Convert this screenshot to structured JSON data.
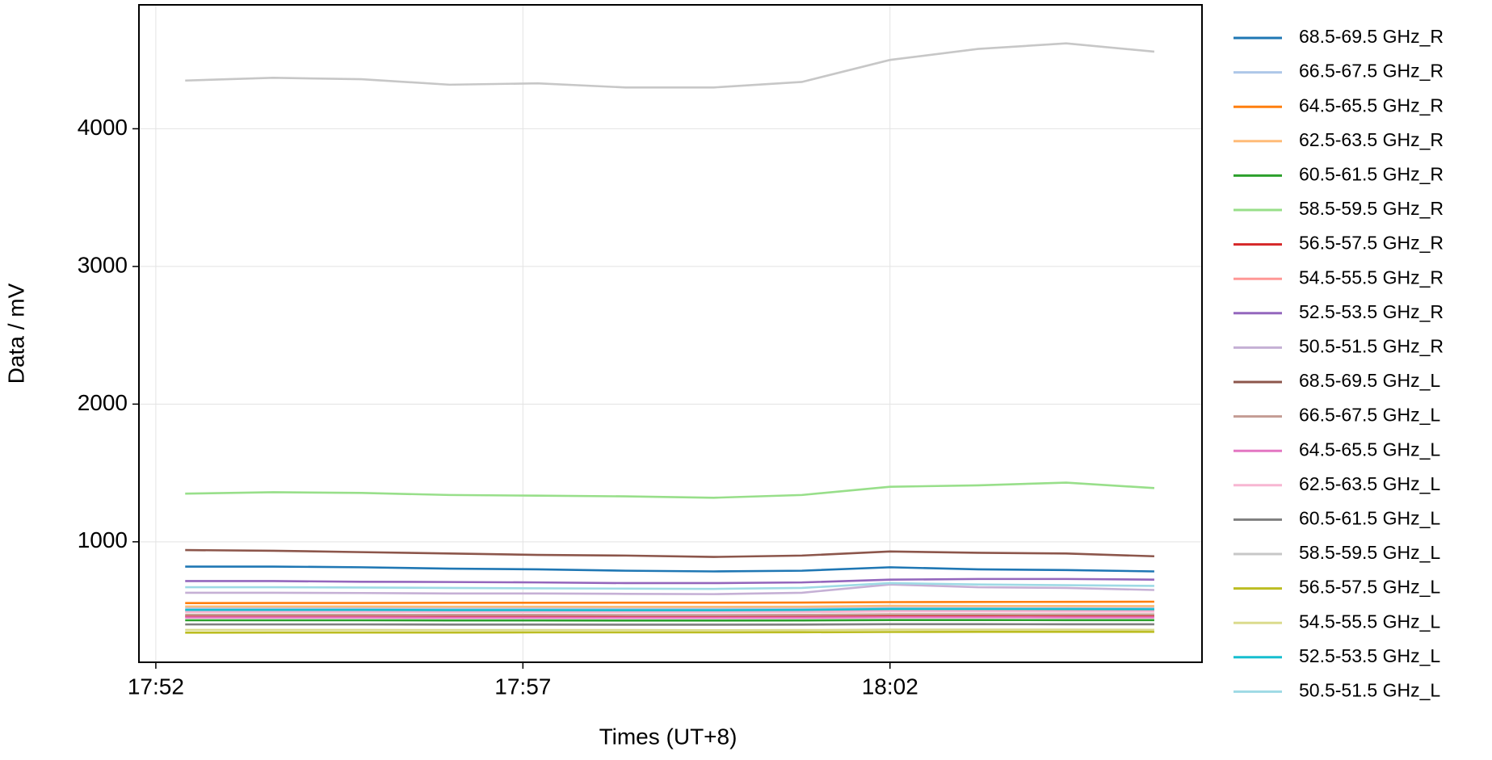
{
  "chart_data": {
    "type": "line",
    "x_label": "Times (UT+8)",
    "y_label": "Data / mV",
    "x": [
      1072.4,
      1073.6,
      1074.8,
      1076.0,
      1077.2,
      1078.4,
      1079.6,
      1080.8,
      1082.0,
      1083.2,
      1084.4,
      1085.6
    ],
    "xlim": [
      1071.77,
      1086.25
    ],
    "xticks": [
      {
        "value": 1072,
        "label": "17:52"
      },
      {
        "value": 1077,
        "label": "17:57"
      },
      {
        "value": 1082,
        "label": "18:02"
      }
    ],
    "ylim": [
      125,
      4900
    ],
    "yticks": [
      1000,
      2000,
      3000,
      4000
    ],
    "grid": true,
    "legend": "outside right",
    "series": [
      {
        "name": "68.5-69.5 GHz_R",
        "color": "#1f77b4",
        "values": [
          820,
          820,
          815,
          805,
          800,
          790,
          785,
          790,
          815,
          800,
          795,
          785
        ]
      },
      {
        "name": "66.5-67.5 GHz_R",
        "color": "#aec7e8",
        "values": [
          520,
          520,
          519,
          518,
          518,
          517,
          516,
          518,
          525,
          524,
          523,
          522
        ]
      },
      {
        "name": "64.5-65.5 GHz_R",
        "color": "#ff7f0e",
        "values": [
          555,
          556,
          556,
          557,
          557,
          558,
          558,
          559,
          562,
          563,
          564,
          565
        ]
      },
      {
        "name": "62.5-63.5 GHz_R",
        "color": "#ffbb78",
        "values": [
          530,
          530,
          530,
          529,
          529,
          528,
          528,
          529,
          535,
          534,
          534,
          533
        ]
      },
      {
        "name": "60.5-61.5 GHz_R",
        "color": "#2ca02c",
        "values": [
          430,
          430,
          430,
          429,
          429,
          428,
          428,
          429,
          432,
          432,
          431,
          431
        ]
      },
      {
        "name": "58.5-59.5 GHz_R",
        "color": "#98df8a",
        "values": [
          1350,
          1360,
          1355,
          1340,
          1335,
          1330,
          1320,
          1340,
          1400,
          1410,
          1430,
          1390
        ]
      },
      {
        "name": "56.5-57.5 GHz_R",
        "color": "#d62728",
        "values": [
          460,
          460,
          460,
          459,
          459,
          458,
          458,
          459,
          463,
          463,
          462,
          462
        ]
      },
      {
        "name": "54.5-55.5 GHz_R",
        "color": "#ff9896",
        "values": [
          500,
          500,
          499,
          499,
          498,
          498,
          497,
          499,
          505,
          504,
          504,
          503
        ]
      },
      {
        "name": "52.5-53.5 GHz_R",
        "color": "#9467bd",
        "values": [
          715,
          715,
          710,
          708,
          705,
          700,
          700,
          705,
          725,
          730,
          730,
          725
        ]
      },
      {
        "name": "50.5-51.5 GHz_R",
        "color": "#c5b0d5",
        "values": [
          630,
          630,
          628,
          625,
          625,
          622,
          620,
          630,
          690,
          670,
          665,
          650
        ]
      },
      {
        "name": "68.5-69.5 GHz_L",
        "color": "#8c564b",
        "values": [
          940,
          935,
          925,
          915,
          905,
          900,
          890,
          900,
          930,
          920,
          915,
          895
        ]
      },
      {
        "name": "66.5-67.5 GHz_L",
        "color": "#c49c94",
        "values": [
          470,
          470,
          470,
          469,
          469,
          468,
          468,
          469,
          473,
          473,
          472,
          472
        ]
      },
      {
        "name": "64.5-65.5 GHz_L",
        "color": "#e377c2",
        "values": [
          450,
          450,
          450,
          449,
          449,
          448,
          448,
          449,
          452,
          452,
          451,
          451
        ]
      },
      {
        "name": "62.5-63.5 GHz_L",
        "color": "#f7b6d2",
        "values": [
          490,
          490,
          490,
          489,
          489,
          488,
          488,
          489,
          494,
          494,
          493,
          493
        ]
      },
      {
        "name": "60.5-61.5 GHz_L",
        "color": "#7f7f7f",
        "values": [
          400,
          400,
          400,
          399,
          399,
          398,
          398,
          399,
          402,
          402,
          401,
          401
        ]
      },
      {
        "name": "58.5-59.5 GHz_L",
        "color": "#c7c7c7",
        "values": [
          4350,
          4370,
          4360,
          4320,
          4330,
          4300,
          4300,
          4340,
          4500,
          4580,
          4620,
          4560
        ]
      },
      {
        "name": "56.5-57.5 GHz_L",
        "color": "#bcbd22",
        "values": [
          340,
          341,
          341,
          341,
          342,
          342,
          342,
          343,
          345,
          346,
          346,
          346
        ]
      },
      {
        "name": "54.5-55.5 GHz_L",
        "color": "#dbdb8d",
        "values": [
          360,
          360,
          360,
          359,
          359,
          359,
          358,
          359,
          362,
          362,
          362,
          361
        ]
      },
      {
        "name": "52.5-53.5 GHz_L",
        "color": "#17becf",
        "values": [
          505,
          505,
          505,
          504,
          504,
          503,
          503,
          505,
          512,
          512,
          511,
          510
        ]
      },
      {
        "name": "50.5-51.5 GHz_L",
        "color": "#9edae5",
        "values": [
          670,
          670,
          668,
          665,
          662,
          660,
          658,
          665,
          700,
          690,
          685,
          680
        ]
      }
    ]
  }
}
